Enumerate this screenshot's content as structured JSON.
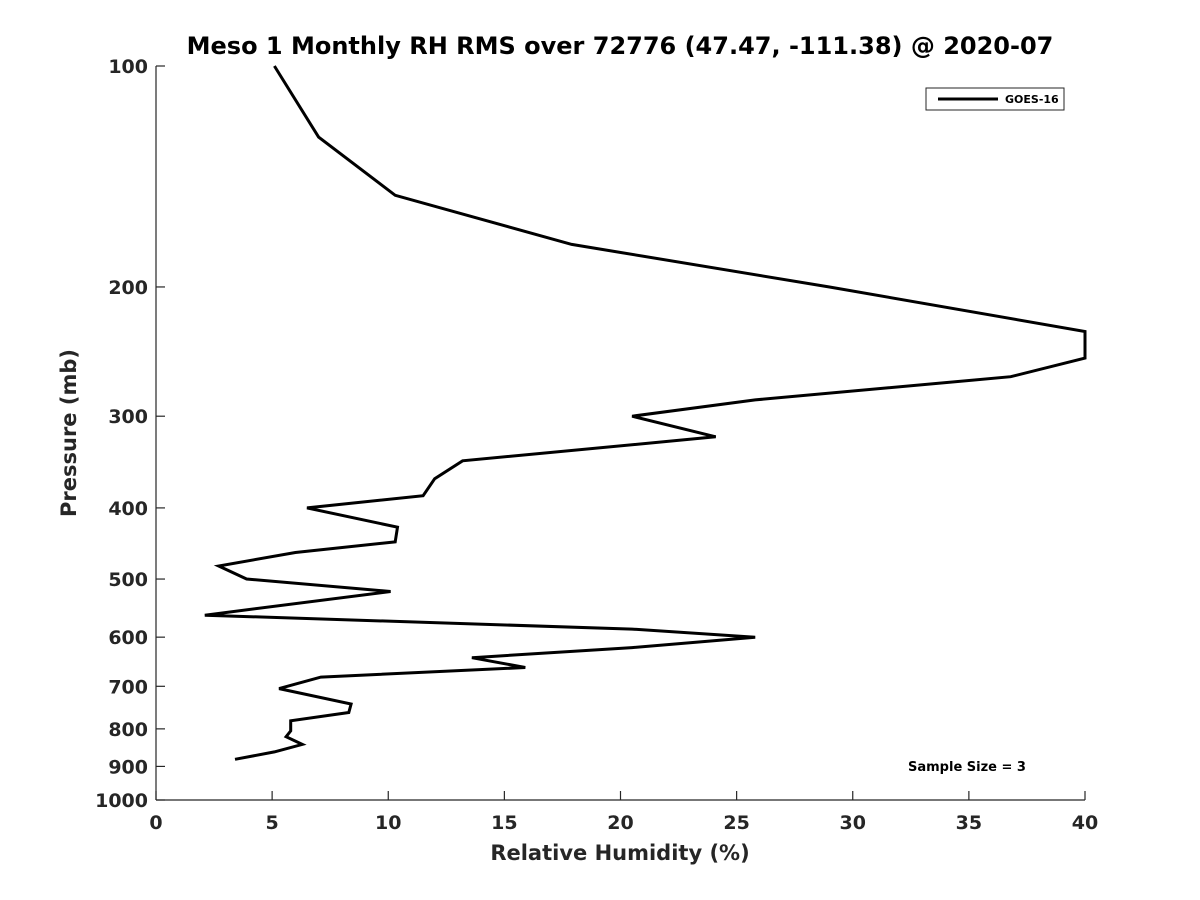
{
  "chart_data": {
    "type": "line",
    "title": "Meso 1 Monthly RH RMS over 72776 (47.47, -111.38) @ 2020-07",
    "xlabel": "Relative Humidity (%)",
    "ylabel": "Pressure (mb)",
    "xlim": [
      0,
      40
    ],
    "ylim": [
      100,
      1000
    ],
    "y_scale": "log",
    "y_reversed": true,
    "x_ticks": [
      0,
      5,
      10,
      15,
      20,
      25,
      30,
      35,
      40
    ],
    "y_ticks": [
      100,
      200,
      300,
      400,
      500,
      600,
      700,
      800,
      900,
      1000
    ],
    "grid": false,
    "legend_position": "top-right",
    "series": [
      {
        "name": "GOES-16",
        "color": "#000000",
        "points": [
          {
            "x": 5.1,
            "y": 100
          },
          {
            "x": 7.0,
            "y": 125
          },
          {
            "x": 10.3,
            "y": 150
          },
          {
            "x": 17.9,
            "y": 175
          },
          {
            "x": 29.0,
            "y": 200
          },
          {
            "x": 40.0,
            "y": 230
          },
          {
            "x": 40.0,
            "y": 250
          },
          {
            "x": 36.8,
            "y": 265
          },
          {
            "x": 25.8,
            "y": 285
          },
          {
            "x": 20.5,
            "y": 300
          },
          {
            "x": 24.1,
            "y": 320
          },
          {
            "x": 13.2,
            "y": 345
          },
          {
            "x": 12.0,
            "y": 365
          },
          {
            "x": 11.5,
            "y": 385
          },
          {
            "x": 6.5,
            "y": 400
          },
          {
            "x": 10.4,
            "y": 425
          },
          {
            "x": 10.3,
            "y": 445
          },
          {
            "x": 6.0,
            "y": 460
          },
          {
            "x": 2.7,
            "y": 480
          },
          {
            "x": 3.9,
            "y": 500
          },
          {
            "x": 10.1,
            "y": 520
          },
          {
            "x": 2.1,
            "y": 560
          },
          {
            "x": 20.5,
            "y": 585
          },
          {
            "x": 25.8,
            "y": 600
          },
          {
            "x": 20.5,
            "y": 620
          },
          {
            "x": 13.6,
            "y": 640
          },
          {
            "x": 15.9,
            "y": 660
          },
          {
            "x": 7.1,
            "y": 680
          },
          {
            "x": 5.3,
            "y": 705
          },
          {
            "x": 8.4,
            "y": 740
          },
          {
            "x": 8.3,
            "y": 760
          },
          {
            "x": 5.8,
            "y": 780
          },
          {
            "x": 5.8,
            "y": 805
          },
          {
            "x": 5.6,
            "y": 820
          },
          {
            "x": 6.3,
            "y": 840
          },
          {
            "x": 5.1,
            "y": 860
          },
          {
            "x": 3.4,
            "y": 880
          }
        ]
      }
    ],
    "annotations": [
      "Sample Size = 3"
    ]
  }
}
